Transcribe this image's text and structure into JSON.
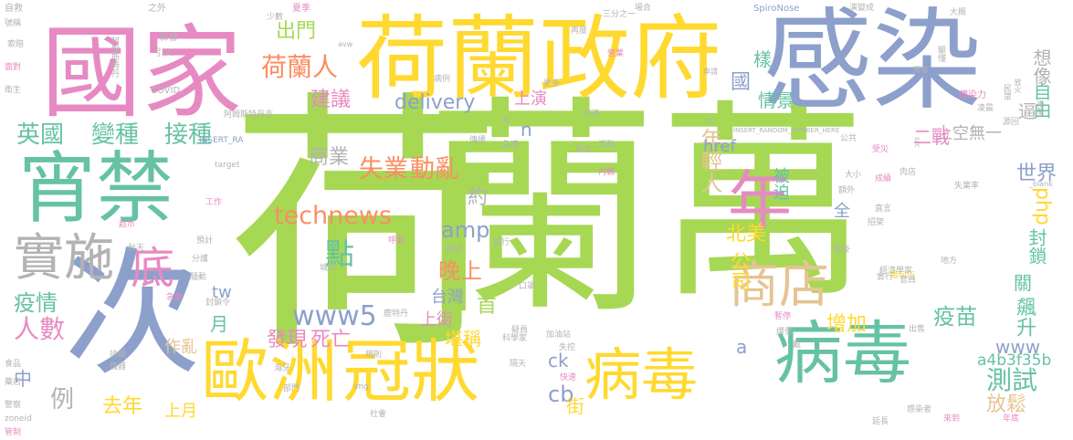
{
  "palette": {
    "green": "#a6d854",
    "yellow": "#ffd92f",
    "periwinkle": "#8da0cb",
    "pink": "#e78ac3",
    "teal": "#66c2a5",
    "orange": "#fc8d62",
    "tan": "#e5c494",
    "gray": "#b3b3b3"
  },
  "words": [
    {
      "text": "荷",
      "color": "green"
    },
    {
      "text": "蘭",
      "color": "green"
    },
    {
      "text": "萬",
      "color": "green"
    },
    {
      "text": "次",
      "color": "periwinkle"
    },
    {
      "text": "感染",
      "color": "periwinkle"
    },
    {
      "text": "國家",
      "color": "pink"
    },
    {
      "text": "荷蘭政府",
      "color": "yellow"
    },
    {
      "text": "宵禁",
      "color": "teal"
    },
    {
      "text": "歐洲",
      "color": "yellow"
    },
    {
      "text": "冠狀",
      "color": "yellow"
    },
    {
      "text": "病毒",
      "color": "yellow"
    },
    {
      "text": "病毒",
      "color": "teal"
    },
    {
      "text": "年",
      "color": "pink"
    },
    {
      "text": "實施",
      "color": "gray"
    },
    {
      "text": "底",
      "color": "pink"
    },
    {
      "text": "商店",
      "color": "tan"
    },
    {
      "text": "英國",
      "color": "teal"
    },
    {
      "text": "變種",
      "color": "teal"
    },
    {
      "text": "接種",
      "color": "teal"
    },
    {
      "text": "荷蘭人",
      "color": "orange"
    },
    {
      "text": "出門",
      "color": "green"
    },
    {
      "text": "建議",
      "color": "pink"
    },
    {
      "text": "delivery",
      "color": "periwinkle"
    },
    {
      "text": "失業",
      "color": "orange"
    },
    {
      "text": "動亂",
      "color": "orange"
    },
    {
      "text": "年輕人",
      "color": "tan"
    },
    {
      "text": "technews",
      "color": "orange"
    },
    {
      "text": "amp",
      "color": "periwinkle"
    },
    {
      "text": "點",
      "color": "teal"
    },
    {
      "text": "www5",
      "color": "periwinkle"
    },
    {
      "text": "發現",
      "color": "pink"
    },
    {
      "text": "死亡",
      "color": "pink"
    },
    {
      "text": "晚上",
      "color": "orange"
    },
    {
      "text": "疫情",
      "color": "teal"
    },
    {
      "text": "人數",
      "color": "pink"
    },
    {
      "text": "例",
      "color": "gray"
    },
    {
      "text": "去年",
      "color": "yellow"
    },
    {
      "text": "上月",
      "color": "yellow"
    },
    {
      "text": "中",
      "color": "periwinkle"
    },
    {
      "text": "月",
      "color": "teal"
    },
    {
      "text": "作亂",
      "color": "tan"
    },
    {
      "text": "首",
      "color": "green"
    },
    {
      "text": "上街",
      "color": "pink"
    },
    {
      "text": "堪稱",
      "color": "yellow"
    },
    {
      "text": "台灣",
      "color": "periwinkle"
    },
    {
      "text": "北美",
      "color": "yellow"
    },
    {
      "text": "公司",
      "color": "yellow"
    },
    {
      "text": "cb",
      "color": "periwinkle"
    },
    {
      "text": "ck",
      "color": "periwinkle"
    },
    {
      "text": "a",
      "color": "periwinkle"
    },
    {
      "text": "街",
      "color": "yellow"
    },
    {
      "text": "測試",
      "color": "teal"
    },
    {
      "text": "放鬆",
      "color": "tan"
    },
    {
      "text": "a4b3f35b",
      "color": "teal"
    },
    {
      "text": "www",
      "color": "periwinkle"
    },
    {
      "text": "飆升",
      "color": "teal"
    },
    {
      "text": "疫苗",
      "color": "teal"
    },
    {
      "text": "增加",
      "color": "yellow"
    },
    {
      "text": "封鎖",
      "color": "teal"
    },
    {
      "text": "php",
      "color": "yellow"
    },
    {
      "text": "世界",
      "color": "periwinkle"
    },
    {
      "text": "自由",
      "color": "teal"
    },
    {
      "text": "想像",
      "color": "gray"
    },
    {
      "text": "逼",
      "color": "gray"
    },
    {
      "text": "上空無一",
      "color": "gray"
    },
    {
      "text": "二戰",
      "color": "pink"
    },
    {
      "text": "被迫",
      "color": "teal"
    },
    {
      "text": "href",
      "color": "periwinkle"
    },
    {
      "text": "情景",
      "color": "teal"
    },
    {
      "text": "樣",
      "color": "teal"
    },
    {
      "text": "國",
      "color": "periwinkle"
    },
    {
      "text": "商業",
      "color": "gray"
    },
    {
      "text": "約",
      "color": "gray"
    },
    {
      "text": "上演",
      "color": "pink"
    },
    {
      "text": "n",
      "color": "periwinkle"
    },
    {
      "text": "tw",
      "color": "periwinkle"
    },
    {
      "text": "全",
      "color": "periwinkle"
    },
    {
      "text": "關",
      "color": "teal"
    },
    {
      "text": "自救",
      "color": "gray"
    },
    {
      "text": "號稱",
      "color": "gray"
    },
    {
      "text": "索賠",
      "color": "gray"
    },
    {
      "text": "面對",
      "color": "pink"
    },
    {
      "text": "衛生",
      "color": "gray"
    },
    {
      "text": "之外",
      "color": "gray"
    },
    {
      "text": "影響",
      "color": "gray"
    },
    {
      "text": "引入",
      "color": "gray"
    },
    {
      "text": "COVID",
      "color": "gray"
    },
    {
      "text": "INSERT_RA",
      "color": "periwinkle"
    },
    {
      "text": "INSERT_RANDOM_NUMBER_HERE",
      "color": "gray"
    },
    {
      "text": "阿姆斯特丹市",
      "color": "gray"
    },
    {
      "text": "阿姆斯特丹",
      "color": "gray"
    },
    {
      "text": "SpiroNose",
      "color": "periwinkle"
    },
    {
      "text": "target",
      "color": "gray"
    },
    {
      "text": "zoneid",
      "color": "gray"
    },
    {
      "text": "avw",
      "color": "gray"
    },
    {
      "text": "img",
      "color": "gray"
    },
    {
      "text": "src",
      "color": "gray"
    },
    {
      "text": "_blank",
      "color": "gray"
    },
    {
      "text": "民眾",
      "color": "gray"
    },
    {
      "text": "傳染力",
      "color": "pink"
    },
    {
      "text": "失業率",
      "color": "gray"
    },
    {
      "text": "肉店",
      "color": "gray"
    },
    {
      "text": "麵包店",
      "color": "yellow"
    },
    {
      "text": "加油站",
      "color": "gray"
    },
    {
      "text": "科學家",
      "color": "gray"
    },
    {
      "text": "經濟學家",
      "color": "gray"
    },
    {
      "text": "超市",
      "color": "pink"
    },
    {
      "text": "秋天",
      "color": "gray"
    },
    {
      "text": "分護",
      "color": "gray"
    },
    {
      "text": "封鎖令",
      "color": "gray"
    },
    {
      "text": "工作",
      "color": "pink"
    },
    {
      "text": "食品",
      "color": "gray"
    },
    {
      "text": "藥店",
      "color": "gray"
    },
    {
      "text": "警察",
      "color": "gray"
    },
    {
      "text": "管制",
      "color": "pink"
    },
    {
      "text": "持續",
      "color": "gray"
    },
    {
      "text": "儀器",
      "color": "gray"
    },
    {
      "text": "急劇",
      "color": "pink"
    },
    {
      "text": "城市",
      "color": "gray"
    },
    {
      "text": "海牙",
      "color": "gray"
    },
    {
      "text": "部門",
      "color": "gray"
    },
    {
      "text": "社會",
      "color": "gray"
    },
    {
      "text": "規則",
      "color": "gray"
    },
    {
      "text": "快速",
      "color": "pink"
    },
    {
      "text": "失控",
      "color": "gray"
    },
    {
      "text": "疑員",
      "color": "gray"
    },
    {
      "text": "口罩",
      "color": "gray"
    },
    {
      "text": "執行",
      "color": "gray"
    },
    {
      "text": "描述",
      "color": "gray"
    },
    {
      "text": "呼氣",
      "color": "pink"
    },
    {
      "text": "預計",
      "color": "gray"
    },
    {
      "text": "騷動",
      "color": "gray"
    },
    {
      "text": "鹿特丹",
      "color": "gray"
    },
    {
      "text": "更多",
      "color": "gray"
    },
    {
      "text": "營業",
      "color": "pink"
    },
    {
      "text": "病例",
      "color": "gray"
    },
    {
      "text": "夏季",
      "color": "pink"
    },
    {
      "text": "少數",
      "color": "gray"
    },
    {
      "text": "場合",
      "color": "gray"
    },
    {
      "text": "演變成",
      "color": "gray"
    },
    {
      "text": "大概",
      "color": "gray"
    },
    {
      "text": "驅懂",
      "color": "gray"
    },
    {
      "text": "周圍",
      "color": "gray"
    },
    {
      "text": "放火",
      "color": "gray"
    },
    {
      "text": "凌晨",
      "color": "gray"
    },
    {
      "text": "源回",
      "color": "gray"
    },
    {
      "text": "公共",
      "color": "gray"
    },
    {
      "text": "受災",
      "color": "pink"
    },
    {
      "text": "大小",
      "color": "gray"
    },
    {
      "text": "額外",
      "color": "gray"
    },
    {
      "text": "成績",
      "color": "pink"
    },
    {
      "text": "招架",
      "color": "gray"
    },
    {
      "text": "直言",
      "color": "gray"
    },
    {
      "text": "暫掛",
      "color": "gray"
    },
    {
      "text": "地方",
      "color": "gray"
    },
    {
      "text": "實行",
      "color": "gray"
    },
    {
      "text": "官員",
      "color": "gray"
    },
    {
      "text": "出售",
      "color": "gray"
    },
    {
      "text": "爆發",
      "color": "gray"
    },
    {
      "text": "暫停",
      "color": "pink"
    },
    {
      "text": "戴",
      "color": "gray"
    },
    {
      "text": "隔天",
      "color": "gray"
    },
    {
      "text": "來到",
      "color": "pink"
    },
    {
      "text": "延長",
      "color": "gray"
    },
    {
      "text": "年底",
      "color": "pink"
    },
    {
      "text": "感染者",
      "color": "gray"
    },
    {
      "text": "衝擊",
      "color": "gray"
    },
    {
      "text": "申請",
      "color": "gray"
    },
    {
      "text": "再度",
      "color": "gray"
    },
    {
      "text": "三分之一",
      "color": "gray"
    },
    {
      "text": "抗議",
      "color": "gray"
    },
    {
      "text": "急速",
      "color": "gray"
    },
    {
      "text": "活動",
      "color": "gray"
    },
    {
      "text": "民生",
      "color": "gray"
    },
    {
      "text": "內戰",
      "color": "pink"
    },
    {
      "text": "傳播",
      "color": "gray"
    },
    {
      "text": "知",
      "color": "gray"
    },
    {
      "text": "九",
      "color": "gray"
    }
  ]
}
